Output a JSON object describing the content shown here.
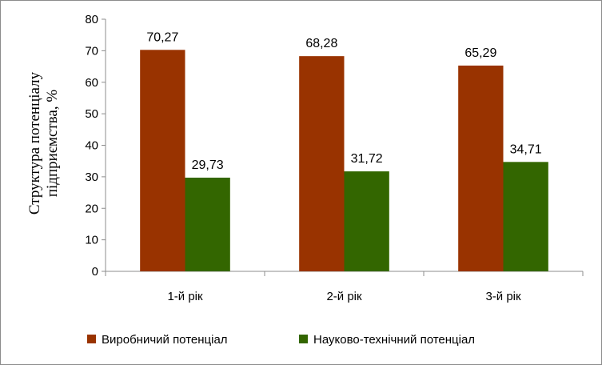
{
  "chart_data": {
    "type": "bar",
    "title": "",
    "xlabel": "",
    "ylabel_lines": [
      "Структура потенціалу",
      "підприємства, %"
    ],
    "ylim": [
      0,
      80
    ],
    "yticks": [
      0,
      10,
      20,
      30,
      40,
      50,
      60,
      70,
      80
    ],
    "grid": false,
    "legend_position": "bottom",
    "categories": [
      "1-й рік",
      "2-й рік",
      "3-й рік"
    ],
    "series": [
      {
        "name": "Виробничий потенціал",
        "color": "#993300",
        "values": [
          70.27,
          68.28,
          65.29
        ],
        "labels": [
          "70,27",
          "68,28",
          "65,29"
        ]
      },
      {
        "name": "Науково-технічний потенціал",
        "color": "#336600",
        "values": [
          29.73,
          31.72,
          34.71
        ],
        "labels": [
          "29,73",
          "31,72",
          "34,71"
        ]
      }
    ]
  }
}
